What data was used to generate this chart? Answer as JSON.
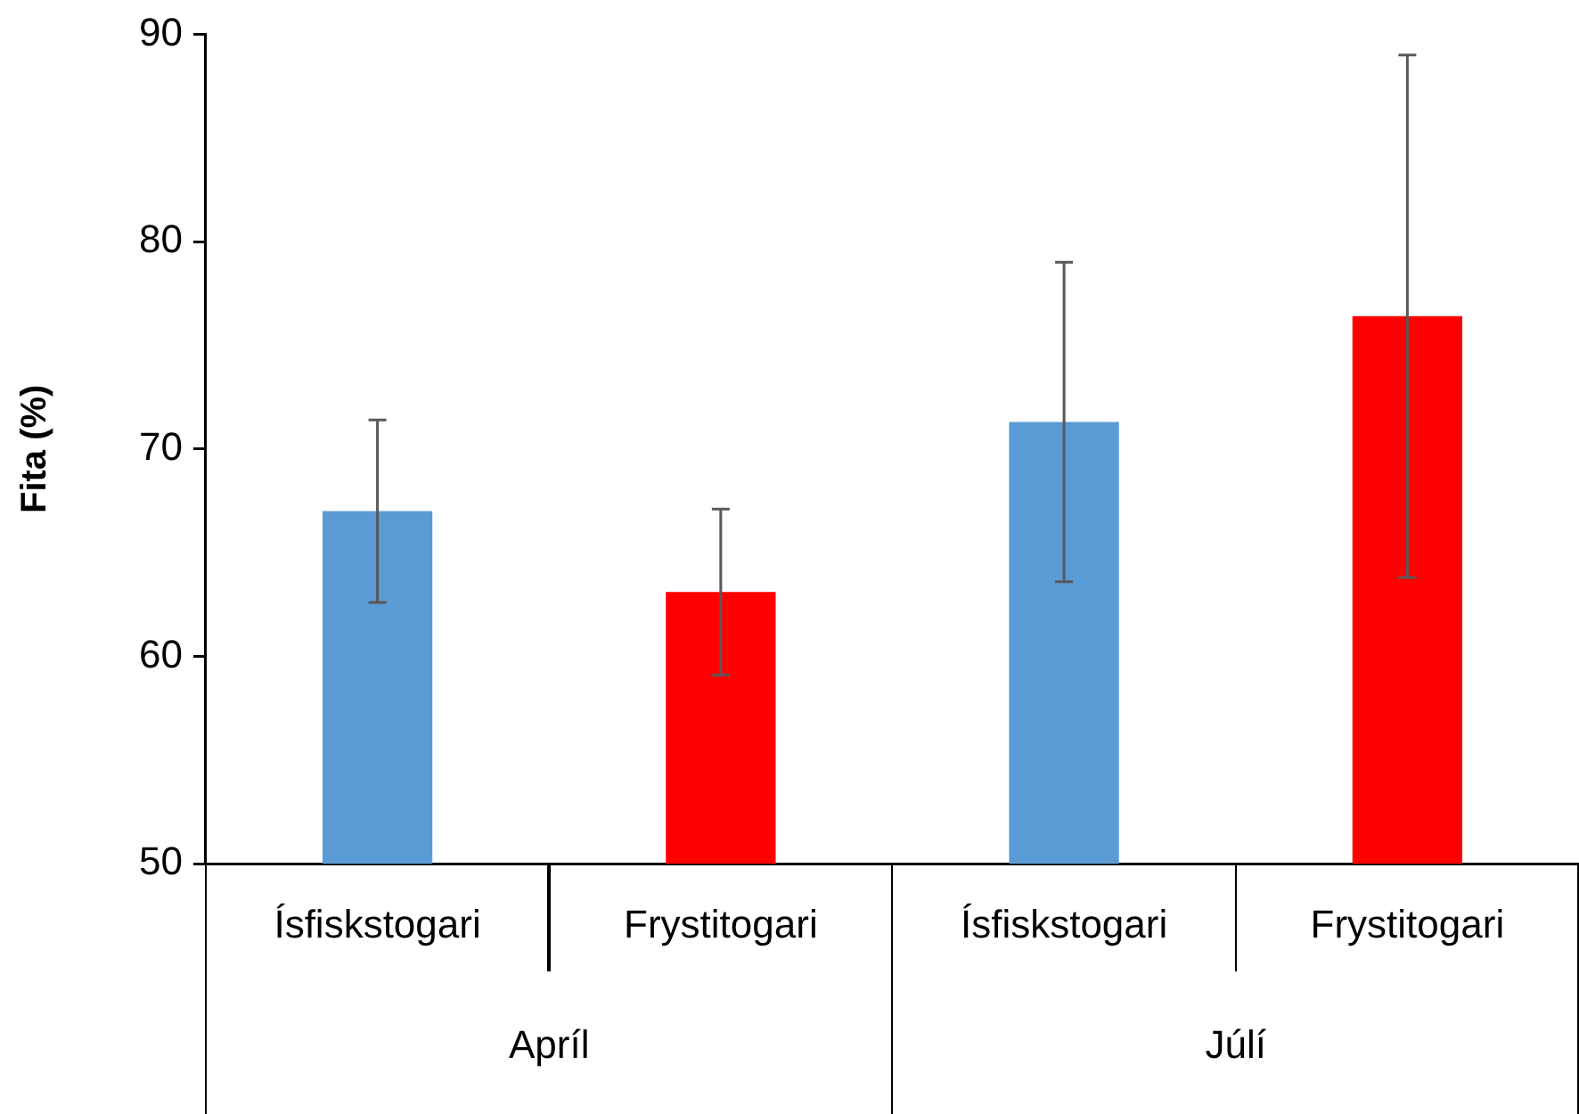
{
  "chart_data": {
    "type": "bar",
    "ylabel": "Fita (%)",
    "categories": [
      "Ísfiskstogari",
      "Frystitogari",
      "Ísfiskstogari",
      "Frystitogari"
    ],
    "values": [
      67.0,
      63.1,
      71.3,
      76.4
    ],
    "errors": [
      4.4,
      4.0,
      7.7,
      12.6
    ],
    "colors": [
      "#5b9bd5",
      "#ff0000",
      "#5b9bd5",
      "#ff0000"
    ],
    "ylim": [
      50,
      90
    ],
    "yticks": [
      50,
      60,
      70,
      80,
      90
    ],
    "grid": false,
    "legend": false,
    "annotations": [
      "Apríl",
      "Júlí"
    ]
  }
}
